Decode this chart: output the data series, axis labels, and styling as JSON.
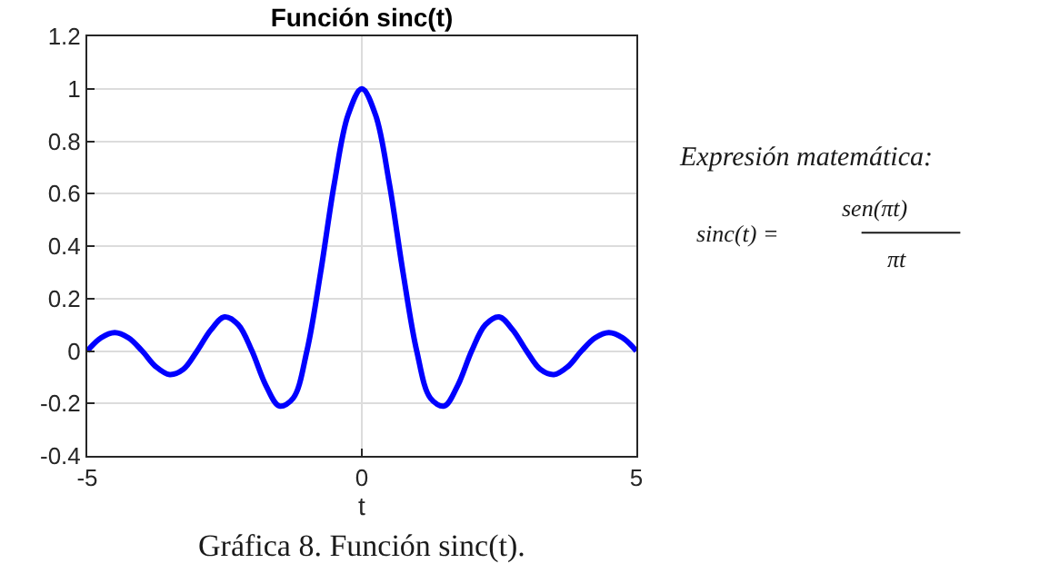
{
  "chart_data": {
    "type": "line",
    "title": "Función sinc(t)",
    "xlabel": "t",
    "x": [
      -5,
      -4.75,
      -4.5,
      -4.25,
      -4,
      -3.75,
      -3.5,
      -3.25,
      -3,
      -2.75,
      -2.5,
      -2.25,
      -2,
      -1.75,
      -1.5,
      -1.25,
      -1,
      -0.75,
      -0.5,
      -0.25,
      0,
      0.25,
      0.5,
      0.75,
      1,
      1.25,
      1.5,
      1.75,
      2,
      2.25,
      2.5,
      2.75,
      3,
      3.25,
      3.5,
      3.75,
      4,
      4.25,
      4.5,
      4.75,
      5
    ],
    "series": [
      {
        "color": "#0000ff",
        "values": [
          0,
          0.05,
          0.07,
          0.05,
          0,
          -0.06,
          -0.09,
          -0.07,
          0,
          0.08,
          0.13,
          0.1,
          0,
          -0.13,
          -0.21,
          -0.18,
          0,
          0.3,
          0.64,
          0.9,
          1,
          0.9,
          0.64,
          0.3,
          0,
          -0.18,
          -0.21,
          -0.13,
          0,
          0.1,
          0.13,
          0.08,
          0,
          -0.07,
          -0.09,
          -0.06,
          0,
          0.05,
          0.07,
          0.05,
          0
        ]
      }
    ],
    "xlim": [
      -5,
      5
    ],
    "xticks": [
      -5,
      0,
      5
    ],
    "ylim": [
      -0.4,
      1.2
    ],
    "yticks": [
      -0.4,
      -0.2,
      0,
      0.2,
      0.4,
      0.6,
      0.8,
      1,
      1.2
    ],
    "grid": true,
    "marker": "none",
    "line_style": "solid",
    "annotations": [
      "Gráfica 8. Función sinc(t).",
      "Expresión matemática:",
      "sinc(t) =",
      "sen(πt)",
      "πt"
    ]
  }
}
